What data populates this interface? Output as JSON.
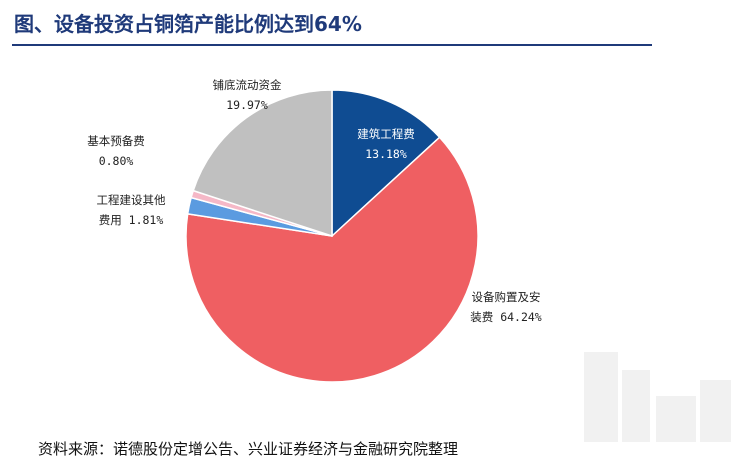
{
  "title": "图、设备投资占铜箔产能比例达到64%",
  "source": "资料来源：诺德股份定增公告、兴业证券经济与金融研究院整理",
  "chart_data": {
    "type": "pie",
    "slices": [
      {
        "name": "建筑工程费",
        "value": 13.18,
        "value_text": "13.18%",
        "color": "#0f4c92",
        "label_lines": [
          "建筑工程费",
          "13.18%"
        ]
      },
      {
        "name": "设备购置及安装费",
        "value": 64.24,
        "value_text": "64.24%",
        "color": "#ef5f62",
        "label_lines": [
          "设备购置及安",
          "装费 64.24%"
        ]
      },
      {
        "name": "工程建设其他费用",
        "value": 1.81,
        "value_text": "1.81%",
        "color": "#5b9be0",
        "label_lines": [
          "工程建设其他",
          "费用 1.81%"
        ]
      },
      {
        "name": "基本预备费",
        "value": 0.8,
        "value_text": "0.80%",
        "color": "#f5b8c7",
        "label_lines": [
          "基本预备费",
          "0.80%"
        ]
      },
      {
        "name": "铺底流动资金",
        "value": 19.97,
        "value_text": "19.97%",
        "color": "#c0c0c0",
        "label_lines": [
          "铺底流动资金",
          "19.97%"
        ]
      }
    ]
  }
}
